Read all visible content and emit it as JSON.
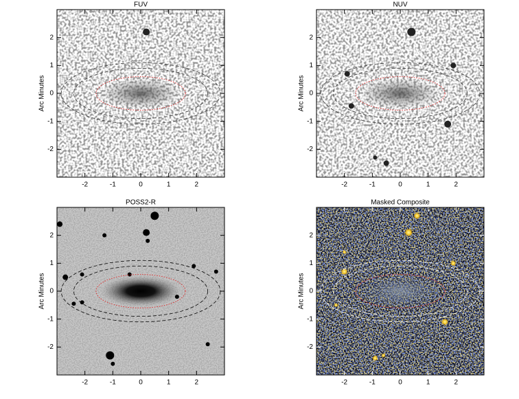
{
  "chart_data": [
    {
      "type": "image",
      "title": "FUV",
      "ylabel": "Arc Minutes",
      "xlim": [
        -3,
        3
      ],
      "ylim": [
        -3,
        3
      ],
      "xticks": [
        -2,
        -1,
        0,
        1,
        2
      ],
      "yticks": [
        -2,
        -1,
        0,
        1,
        2
      ]
    },
    {
      "type": "image",
      "title": "NUV",
      "ylabel": "Arc Minutes",
      "xlim": [
        -3,
        3
      ],
      "ylim": [
        -3,
        3
      ],
      "xticks": [
        -2,
        -1,
        0,
        1,
        2
      ],
      "yticks": [
        -2,
        -1,
        0,
        1,
        2
      ]
    },
    {
      "type": "image",
      "title": "POSS2-R",
      "ylabel": "Arc Minutes",
      "xlim": [
        -3,
        3
      ],
      "ylim": [
        -3,
        3
      ],
      "xticks": [
        -2,
        -1,
        0,
        1,
        2
      ],
      "yticks": [
        -2,
        -1,
        0,
        1,
        2
      ]
    },
    {
      "type": "image",
      "title": "Masked Composite",
      "ylabel": "Arc Minutes",
      "xlim": [
        -3,
        3
      ],
      "ylim": [
        -3,
        3
      ],
      "xticks": [
        -2,
        -1,
        0,
        1,
        2
      ],
      "yticks": [
        -2,
        -1,
        0,
        1,
        2
      ]
    }
  ]
}
